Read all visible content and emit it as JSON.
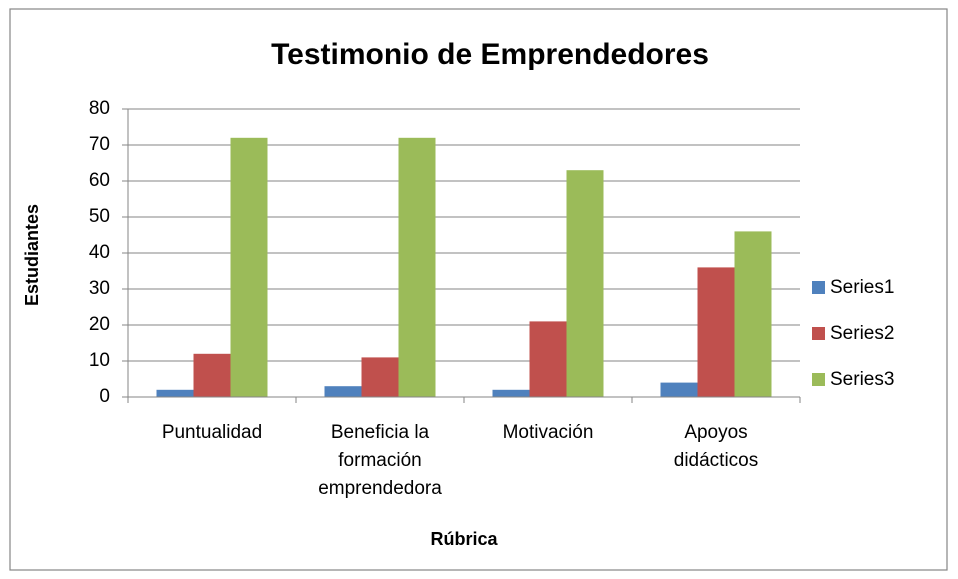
{
  "chart_data": {
    "type": "bar",
    "title": "Testimonio de Emprendedores",
    "xlabel": "Rúbrica",
    "ylabel": "Estudiantes",
    "categories": [
      "Puntualidad",
      "Beneficia la formación emprendedora",
      "Motivación",
      "Apoyos didácticos"
    ],
    "series": [
      {
        "name": "Series1",
        "color": "#4f81bd",
        "values": [
          2,
          3,
          2,
          4
        ]
      },
      {
        "name": "Series2",
        "color": "#c0504d",
        "values": [
          12,
          11,
          21,
          36
        ]
      },
      {
        "name": "Series3",
        "color": "#9bbb59",
        "values": [
          72,
          72,
          63,
          46
        ]
      }
    ],
    "ylim": [
      0,
      80
    ],
    "yticks": [
      0,
      10,
      20,
      30,
      40,
      50,
      60,
      70,
      80
    ],
    "grid": true,
    "legend": "right"
  }
}
